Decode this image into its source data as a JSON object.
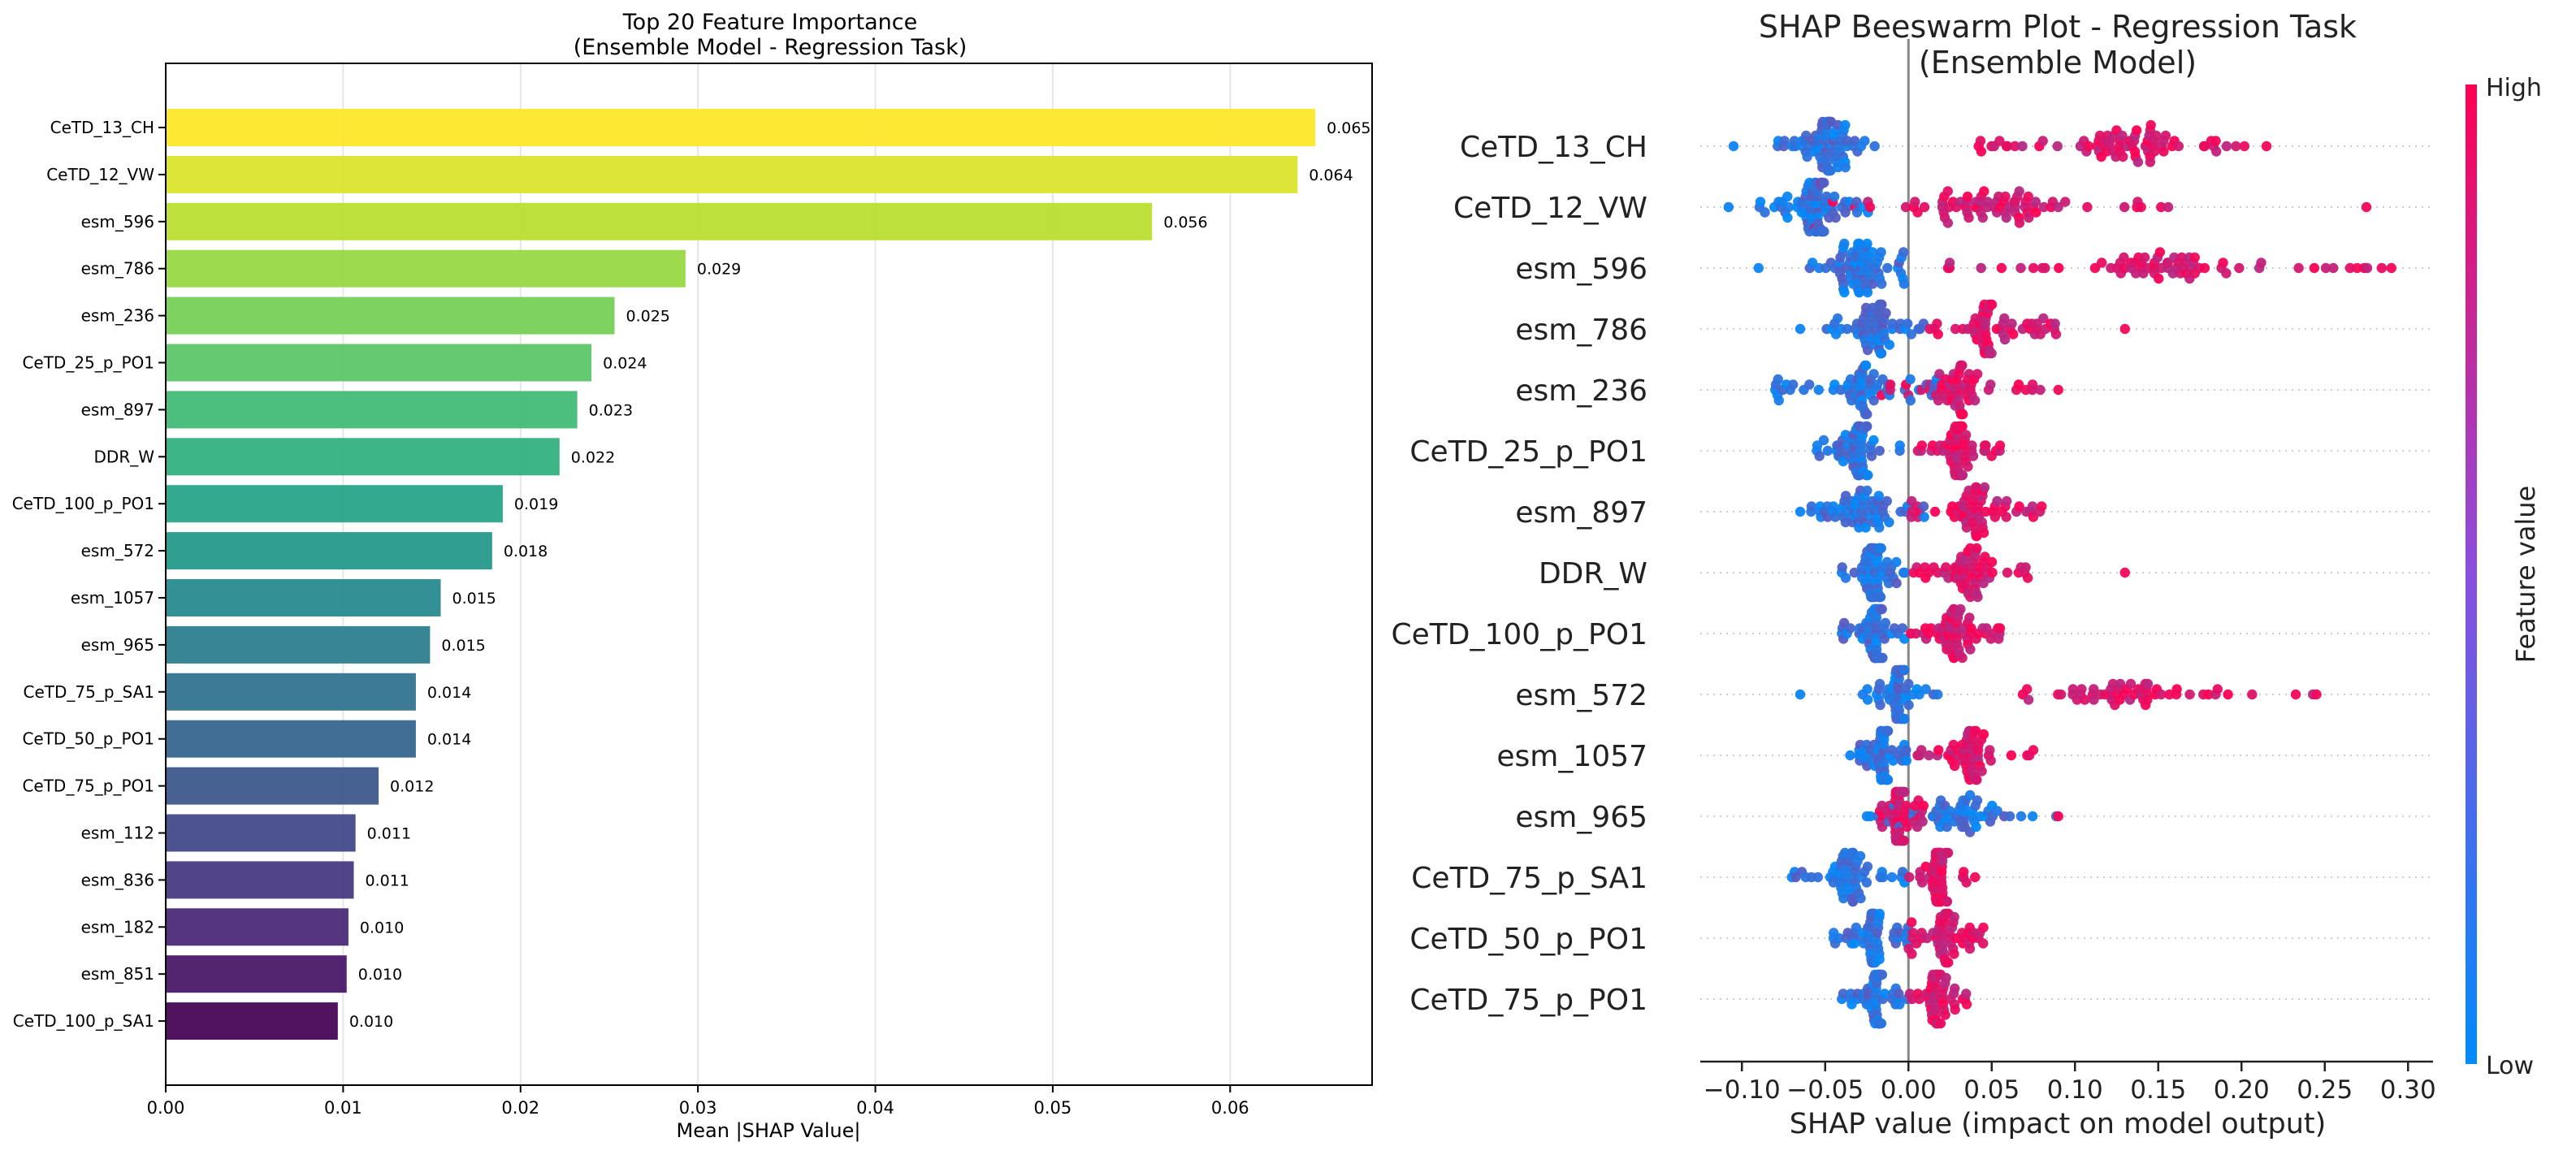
{
  "chart_data": [
    {
      "type": "bar",
      "orientation": "horizontal",
      "title": "Top 20 Feature Importance\n(Ensemble Model - Regression Task)",
      "title_lines": [
        "Top 20 Feature Importance",
        "(Ensemble Model - Regression Task)"
      ],
      "xlabel": "Mean |SHAP Value|",
      "ylabel": "",
      "xlim": [
        0,
        0.068
      ],
      "xticks": [
        0.0,
        0.01,
        0.02,
        0.03,
        0.04,
        0.05,
        0.06
      ],
      "xtick_labels": [
        "0.00",
        "0.01",
        "0.02",
        "0.03",
        "0.04",
        "0.05",
        "0.06"
      ],
      "grid": "vertical",
      "categories": [
        "CeTD_13_CH",
        "CeTD_12_VW",
        "esm_596",
        "esm_786",
        "esm_236",
        "CeTD_25_p_PO1",
        "esm_897",
        "DDR_W",
        "CeTD_100_p_PO1",
        "esm_572",
        "esm_1057",
        "esm_965",
        "CeTD_75_p_SA1",
        "CeTD_50_p_PO1",
        "CeTD_75_p_PO1",
        "esm_112",
        "esm_836",
        "esm_182",
        "esm_851",
        "CeTD_100_p_SA1"
      ],
      "values": [
        0.0648,
        0.0638,
        0.0556,
        0.0293,
        0.0253,
        0.024,
        0.0232,
        0.0222,
        0.019,
        0.0184,
        0.0155,
        0.0149,
        0.0141,
        0.0141,
        0.012,
        0.0107,
        0.0106,
        0.0103,
        0.0102,
        0.0097
      ],
      "value_labels": [
        "0.065",
        "0.064",
        "0.056",
        "0.029",
        "0.025",
        "0.024",
        "0.023",
        "0.022",
        "0.019",
        "0.018",
        "0.015",
        "0.015",
        "0.014",
        "0.014",
        "0.012",
        "0.011",
        "0.011",
        "0.010",
        "0.010",
        "0.010"
      ],
      "colormap": "viridis (top = yellow #fde725, bottom = purple #440154)"
    },
    {
      "type": "scatter",
      "subtype": "shap-beeswarm",
      "title": "SHAP Beeswarm Plot - Regression Task\n(Ensemble Model)",
      "title_lines": [
        "SHAP Beeswarm Plot - Regression Task",
        "(Ensemble Model)"
      ],
      "xlabel": "SHAP value (impact on model output)",
      "xlim": [
        -0.125,
        0.315
      ],
      "xticks": [
        -0.1,
        -0.05,
        0.0,
        0.05,
        0.1,
        0.15,
        0.2,
        0.25,
        0.3
      ],
      "xtick_labels": [
        "−0.10",
        "−0.05",
        "0.00",
        "0.05",
        "0.10",
        "0.15",
        "0.20",
        "0.25",
        "0.30"
      ],
      "features": [
        "CeTD_13_CH",
        "CeTD_12_VW",
        "esm_596",
        "esm_786",
        "esm_236",
        "CeTD_25_p_PO1",
        "esm_897",
        "DDR_W",
        "CeTD_100_p_PO1",
        "esm_572",
        "esm_1057",
        "esm_965",
        "CeTD_75_p_SA1",
        "CeTD_50_p_PO1",
        "CeTD_75_p_PO1"
      ],
      "rows": [
        {
          "feature": "CeTD_13_CH",
          "low_range": [
            -0.08,
            -0.02
          ],
          "high_range": [
            0.04,
            0.22
          ],
          "extremes": [
            -0.105,
            0.215
          ],
          "n": 150
        },
        {
          "feature": "CeTD_12_VW",
          "low_range": [
            -0.09,
            -0.02
          ],
          "high_range": [
            -0.06,
            0.16
          ],
          "extremes": [
            -0.108,
            0.275
          ],
          "n": 150
        },
        {
          "feature": "esm_596",
          "low_range": [
            -0.06,
            0.0
          ],
          "high_range": [
            0.02,
            0.29
          ],
          "extremes": [
            -0.09,
            0.29
          ],
          "n": 140
        },
        {
          "feature": "esm_786",
          "low_range": [
            -0.05,
            0.01
          ],
          "high_range": [
            0.0,
            0.09
          ],
          "extremes": [
            -0.065,
            0.13
          ],
          "n": 120
        },
        {
          "feature": "esm_236",
          "low_range": [
            -0.08,
            0.02
          ],
          "high_range": [
            -0.02,
            0.08
          ],
          "extremes": [
            -0.08,
            0.09
          ],
          "n": 120
        },
        {
          "feature": "CeTD_25_p_PO1",
          "low_range": [
            -0.055,
            -0.005
          ],
          "high_range": [
            0.005,
            0.055
          ],
          "extremes": [
            -0.055,
            0.055
          ],
          "n": 120
        },
        {
          "feature": "esm_897",
          "low_range": [
            -0.06,
            0.01
          ],
          "high_range": [
            0.0,
            0.08
          ],
          "extremes": [
            -0.065,
            0.08
          ],
          "n": 120
        },
        {
          "feature": "DDR_W",
          "low_range": [
            -0.04,
            0.0
          ],
          "high_range": [
            0.0,
            0.075
          ],
          "extremes": [
            -0.04,
            0.13
          ],
          "n": 120
        },
        {
          "feature": "CeTD_100_p_PO1",
          "low_range": [
            -0.04,
            0.0
          ],
          "high_range": [
            0.0,
            0.055
          ],
          "extremes": [
            -0.04,
            0.055
          ],
          "n": 120
        },
        {
          "feature": "esm_572",
          "low_range": [
            -0.03,
            0.02
          ],
          "high_range": [
            0.02,
            0.245
          ],
          "extremes": [
            -0.065,
            0.245
          ],
          "n": 110
        },
        {
          "feature": "esm_1057",
          "low_range": [
            -0.03,
            0.0
          ],
          "high_range": [
            0.0,
            0.075
          ],
          "extremes": [
            -0.035,
            0.075
          ],
          "n": 110
        },
        {
          "feature": "esm_965",
          "low_range": [
            -0.025,
            0.09
          ],
          "high_range": [
            -0.02,
            0.01
          ],
          "extremes": [
            -0.025,
            0.09
          ],
          "n": 110
        },
        {
          "feature": "CeTD_75_p_SA1",
          "low_range": [
            -0.07,
            0.0
          ],
          "high_range": [
            0.0,
            0.035
          ],
          "extremes": [
            -0.07,
            0.04
          ],
          "n": 110
        },
        {
          "feature": "CeTD_50_p_PO1",
          "low_range": [
            -0.045,
            0.0
          ],
          "high_range": [
            0.0,
            0.045
          ],
          "extremes": [
            -0.045,
            0.045
          ],
          "n": 110
        },
        {
          "feature": "CeTD_75_p_PO1",
          "low_range": [
            -0.04,
            0.0
          ],
          "high_range": [
            0.0,
            0.035
          ],
          "extremes": [
            -0.04,
            0.035
          ],
          "n": 110
        }
      ],
      "colorbar": {
        "label": "Feature value",
        "high_label": "High",
        "low_label": "Low",
        "low_color": "#008bfb",
        "high_color": "#ff0052"
      }
    }
  ]
}
